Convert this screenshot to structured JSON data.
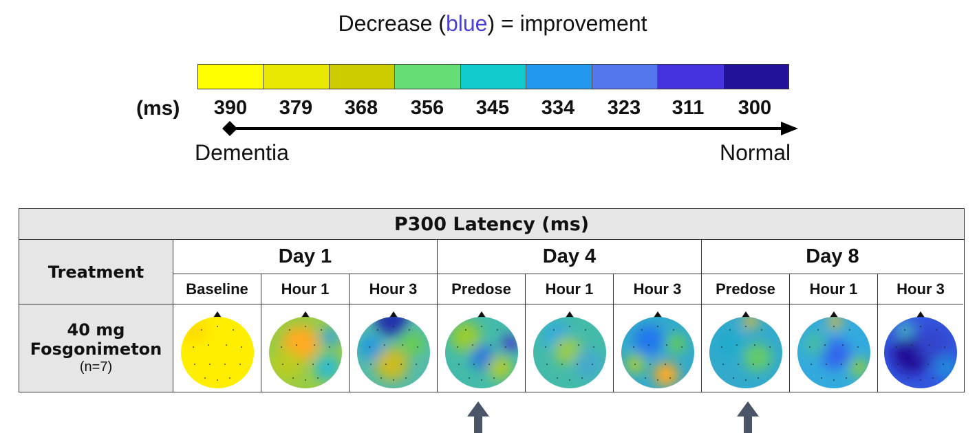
{
  "legend": {
    "title_prefix": "Decrease (",
    "title_blue": "blue",
    "title_suffix": ") = improvement",
    "unit": "(ms)",
    "ticks": [
      "390",
      "379",
      "368",
      "356",
      "345",
      "334",
      "323",
      "311",
      "300"
    ],
    "colors": [
      "#ffff00",
      "#e8e800",
      "#cccc00",
      "#66dd77",
      "#11cccc",
      "#2299ee",
      "#5577ee",
      "#4433dd",
      "#221199"
    ],
    "left_label": "Dementia",
    "right_label": "Normal"
  },
  "table": {
    "title": "P300 Latency (ms)",
    "treatment_header": "Treatment",
    "days": [
      "Day 1",
      "Day 4",
      "Day 8"
    ],
    "timepoints": [
      "Baseline",
      "Hour 1",
      "Hour 3",
      "Predose",
      "Hour 1",
      "Hour 3",
      "Predose",
      "Hour 1",
      "Hour 3"
    ],
    "treatment_dose": "40 mg",
    "treatment_name": "Fosgonimeton",
    "treatment_n": "(n=7)"
  },
  "arrow_color": "#4a5668"
}
